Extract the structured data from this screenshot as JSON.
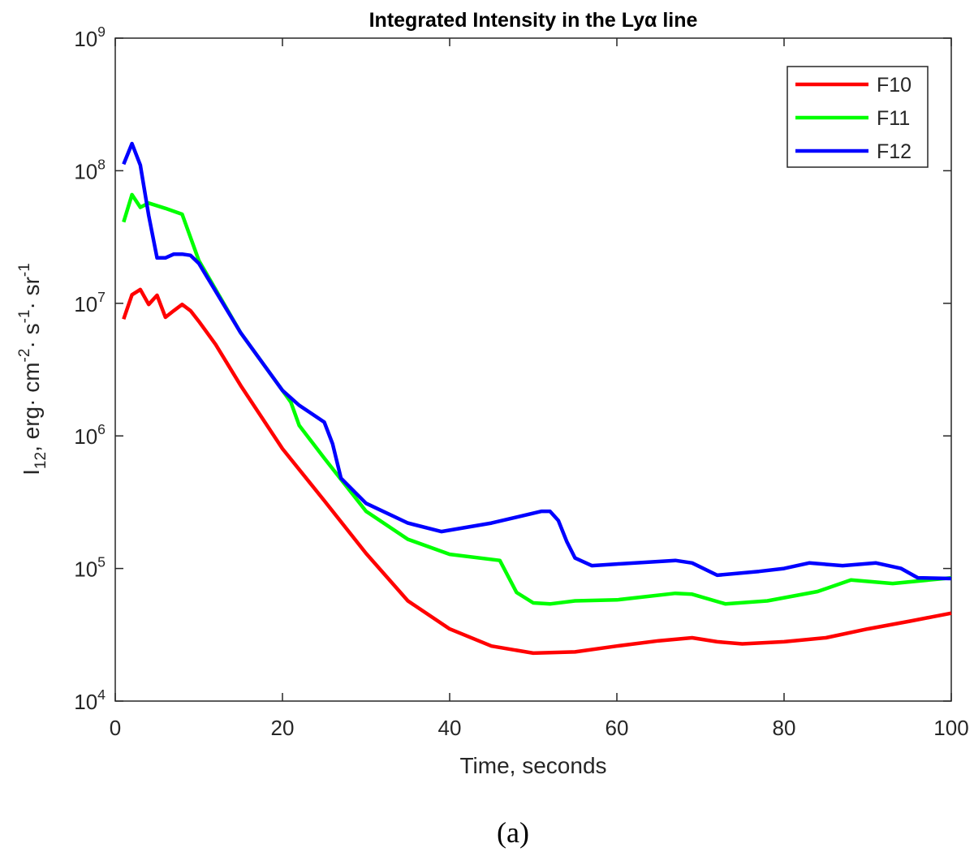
{
  "chart_data": {
    "type": "line",
    "title": "Integrated Intensity in the Lyα line",
    "xlabel": "Time, seconds",
    "ylabel": "I_{12}, erg· cm^{-2}· s^{-1}· sr^{-1}",
    "caption": "(a)",
    "xlim": [
      0,
      100
    ],
    "xticks": [
      0,
      20,
      40,
      60,
      80,
      100
    ],
    "ylim": [
      10000,
      1000000000
    ],
    "yscale": "log",
    "yticks": [
      {
        "value": 10000,
        "label": "10^4"
      },
      {
        "value": 100000,
        "label": "10^5"
      },
      {
        "value": 1000000,
        "label": "10^6"
      },
      {
        "value": 10000000,
        "label": "10^7"
      },
      {
        "value": 100000000,
        "label": "10^8"
      },
      {
        "value": 1000000000,
        "label": "10^9"
      }
    ],
    "legend": "upper right",
    "grid": false,
    "series": [
      {
        "name": "F10",
        "color": "#ff0000",
        "x": [
          1,
          2,
          3,
          4,
          5,
          6,
          7,
          8,
          9,
          10,
          12,
          15,
          20,
          25,
          30,
          35,
          40,
          45,
          50,
          55,
          60,
          65,
          69,
          72,
          75,
          80,
          85,
          90,
          95,
          100
        ],
        "values": [
          7600000,
          11600000,
          12700000,
          9800000,
          11500000,
          7850000,
          8800000,
          9800000,
          8800000,
          7300000,
          4900000,
          2400000,
          800000,
          325000,
          130000,
          57000,
          35000,
          26000,
          23000,
          23500,
          26000,
          28500,
          30000,
          28000,
          27000,
          28000,
          30000,
          35000,
          40000,
          46000
        ]
      },
      {
        "name": "F11",
        "color": "#00ff00",
        "x": [
          1,
          2,
          3,
          4,
          6,
          8,
          10,
          15,
          20,
          21,
          22,
          25,
          30,
          35,
          40,
          46,
          48,
          50,
          52,
          55,
          60,
          67,
          69,
          73,
          78,
          84,
          88,
          93,
          100
        ],
        "values": [
          41000000,
          66000000,
          53000000,
          57000000,
          52000000,
          47000000,
          21000000,
          6000000,
          2200000,
          1800000,
          1200000,
          680000,
          270000,
          166000,
          128000,
          115000,
          66000,
          55000,
          54000,
          57000,
          58000,
          65000,
          64000,
          54000,
          57000,
          67000,
          82000,
          77000,
          85000
        ]
      },
      {
        "name": "F12",
        "color": "#0000ff",
        "x": [
          1,
          2,
          3,
          4,
          5,
          6,
          7,
          8,
          9,
          10,
          15,
          20,
          22,
          25,
          26,
          27,
          30,
          35,
          39,
          45,
          51,
          52,
          53,
          54,
          55,
          57,
          60,
          67,
          69,
          72,
          77,
          80,
          83,
          87,
          91,
          94,
          96,
          100
        ],
        "values": [
          112000000,
          160000000,
          110000000,
          46000000,
          22000000,
          22000000,
          23500000,
          23500000,
          23000000,
          20000000,
          6000000,
          2200000,
          1700000,
          1270000,
          870000,
          480000,
          310000,
          220000,
          190000,
          220000,
          270000,
          270000,
          230000,
          160000,
          120000,
          105000,
          108000,
          115000,
          110000,
          89000,
          95000,
          100000,
          110000,
          105000,
          110000,
          100000,
          85000,
          84000
        ]
      }
    ]
  }
}
